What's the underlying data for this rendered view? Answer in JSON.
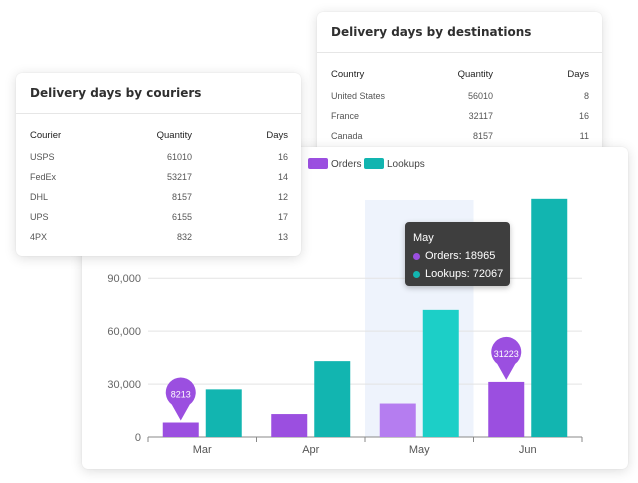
{
  "destinations": {
    "title": "Delivery days by destinations",
    "headers": [
      "Country",
      "Quantity",
      "Days"
    ],
    "rows": [
      [
        "United States",
        "56010",
        "8"
      ],
      [
        "France",
        "32117",
        "16"
      ],
      [
        "Canada",
        "8157",
        "11"
      ]
    ]
  },
  "couriers": {
    "title": "Delivery days by couriers",
    "headers": [
      "Courier",
      "Quantity",
      "Days"
    ],
    "rows": [
      [
        "USPS",
        "61010",
        "16"
      ],
      [
        "FedEx",
        "53217",
        "14"
      ],
      [
        "DHL",
        "8157",
        "12"
      ],
      [
        "UPS",
        "6155",
        "17"
      ],
      [
        "4PX",
        "832",
        "13"
      ]
    ]
  },
  "colors": {
    "orders": "#9b4fe0",
    "orders_highlight": "#b57df0",
    "lookups": "#12b5b0",
    "lookups_highlight": "#1ccfc7",
    "hover_band": "#eef3fc"
  },
  "chart_data": {
    "type": "bar",
    "categories": [
      "Mar",
      "Apr",
      "May",
      "Jun"
    ],
    "series": [
      {
        "name": "Orders",
        "values": [
          8213,
          13000,
          18965,
          31223
        ]
      },
      {
        "name": "Lookups",
        "values": [
          27000,
          43000,
          72067,
          135000
        ]
      }
    ],
    "ylim": [
      0,
      140000
    ],
    "yticks": [
      0,
      30000,
      60000,
      90000
    ],
    "ytick_labels": [
      "0",
      "30,000",
      "60,000",
      "90,000"
    ],
    "legend_position": "top-left",
    "grid": true,
    "hovered_category": "May",
    "tooltip": {
      "title": "May",
      "lines": [
        "Orders: 18965",
        "Lookups: 72067"
      ]
    },
    "pin_labels": [
      {
        "category": "Mar",
        "series": "Orders",
        "label": "8213"
      },
      {
        "category": "Jun",
        "series": "Orders",
        "label": "31223"
      }
    ]
  }
}
